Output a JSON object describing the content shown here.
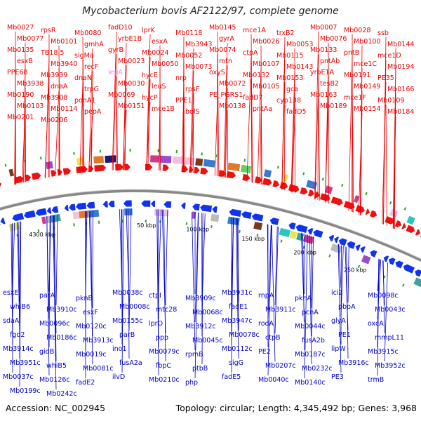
{
  "title": "Mycobacterium bovis AF2122/97, complete genome",
  "accession": "Accession: NC_002945",
  "summary": "Topology: circular; Length: 4,345,492 bp; Genes: 3,968",
  "colors": {
    "forward_label": "#ee0000",
    "reverse_label": "#0000cc",
    "highlight_label": "#ee88ee",
    "forward_arrow": "#ee1111",
    "reverse_arrow": "#1133ee",
    "backbone": "#888888",
    "tick_marks": "#22aa22"
  },
  "scale_labels": [
    "4300 kbp",
    "50 kbp",
    "100 kbp",
    "150 kbp",
    "200 kbp",
    "250 kbp"
  ],
  "forward_genes": [
    "Mb0027",
    "rpsR",
    "Mb0080",
    "fadD10",
    "lprK",
    "Mb0118",
    "Mb0145",
    "mce1A",
    "trxB2",
    "Mb0007",
    "Mb0028",
    "ssb",
    "Mb0077",
    "Mb0101",
    "gmhA",
    "yrbE1B",
    "esxA",
    "Mb3943",
    "gyrA",
    "Mb0026",
    "Mb0053",
    "Mb0076",
    "Mb0100",
    "Mb0144",
    "Mb0135",
    "TB18.5",
    "sigMa",
    "gyrB",
    "Mb0024",
    "Mb0052",
    "Mb0074",
    "ctpA",
    "Mb0115",
    "Mb0133",
    "pntB",
    "mce1D",
    "esxB",
    "Mb3940",
    "recF",
    "Mb0023",
    "Mb0050",
    "Mb0073",
    "mtn",
    "Mb0107",
    "Mb0143",
    "pntAb",
    "mce1C",
    "Mb0194",
    "PPE68",
    "Mb3939",
    "dnaN",
    "leuA",
    "hycE",
    "nrp",
    "oxyS",
    "Mb0132",
    "Mb0153",
    "yrbE1A",
    "Mb0191",
    "PE35",
    "Mb3938",
    "dnaA",
    "trpG",
    "Mb0030",
    "leuS",
    "rpsF",
    "Mb0072",
    "Mb0105",
    "gca",
    "tesB2",
    "Mb0149",
    "Mb0166",
    "Mb0190",
    "Mb3908",
    "ponA1",
    "Mb0069",
    "hycP",
    "PPE1",
    "PE_PGRS1",
    "fadD7",
    "cyp138",
    "Mb0163",
    "mce1F",
    "Mb0109",
    "Mb0103",
    "Mb0114",
    "pepA",
    "Mb0151",
    "mce1B",
    "bolS",
    "Mb0138",
    "pntAa",
    "fadD5",
    "Mb0189",
    "Mb0154",
    "Mb0184",
    "Mb0201",
    "Mb0206"
  ],
  "reverse_genes": [
    "esxE",
    "parA",
    "pknB",
    "Mb0038c",
    "ctpI",
    "Mb3909c",
    "Mb3931c",
    "rnpA",
    "pknA",
    "ici2",
    "Mb0098c",
    "whiB6",
    "Mb3910c",
    "esxF",
    "Mb0008c",
    "mtc28",
    "Mb0068c",
    "fadE1",
    "Mb3911c",
    "pcnA",
    "pbpA",
    "Mb0043c",
    "sdaA",
    "Mb0096c",
    "Mb0120c",
    "Mb0155c",
    "lprO",
    "Mb3912c",
    "Mb3947c",
    "rodA",
    "Mb0044c",
    "glyA",
    "oxcA",
    "fgd2",
    "Mb0186c",
    "Mb3913c",
    "parB",
    "ppp",
    "Mb0045c",
    "Mb0078c",
    "ctpB",
    "fusA2b",
    "PE1",
    "mmpL11",
    "Mb3914c",
    "gidB",
    "Mb0019c",
    "ino1",
    "Mb0079c",
    "rpmB",
    "Mb0112c",
    "PE2",
    "Mb0187c",
    "lipW",
    "Mb3915c",
    "Mb3951c",
    "whiB5",
    "Mb0081c",
    "fusA2a",
    "fbpC",
    "ptbB",
    "sigG",
    "Mb0207c",
    "Mb0232c",
    "Mb3916c",
    "Mb3952c",
    "Mb0037c",
    "Mb0126c",
    "fadE2",
    "ilvD",
    "Mb0210c",
    "php",
    "fadE5",
    "Mb0040c",
    "Mb0140c",
    "PE3",
    "trmB",
    "Mb0199c",
    "Mb0242c"
  ]
}
